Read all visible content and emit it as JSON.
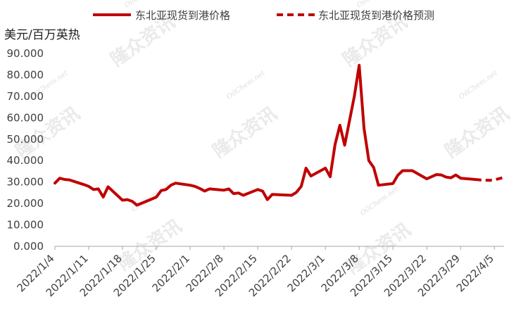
{
  "chart_data": {
    "type": "line",
    "ylabel": "美元/百万英热",
    "ylim": [
      0,
      90
    ],
    "y_ticks": [
      "0.000",
      "10.000",
      "20.000",
      "30.000",
      "40.000",
      "50.000",
      "60.000",
      "70.000",
      "80.000",
      "90.000"
    ],
    "x_ticks": [
      "2022/1/4",
      "2022/1/11",
      "2022/1/18",
      "2022/1/25",
      "2022/2/1",
      "2022/2/8",
      "2022/2/15",
      "2022/2/22",
      "2022/3/1",
      "2022/3/8",
      "2022/3/15",
      "2022/3/22",
      "2022/3/29",
      "2022/4/5"
    ],
    "x_range": [
      "2022-01-04",
      "2022-04-07"
    ],
    "series": [
      {
        "name": "东北亚现货到港价格",
        "style": "solid",
        "color": "#C00000",
        "points": [
          [
            "2022-01-04",
            29.5
          ],
          [
            "2022-01-05",
            31.8
          ],
          [
            "2022-01-06",
            31.2
          ],
          [
            "2022-01-07",
            31.0
          ],
          [
            "2022-01-10",
            28.8
          ],
          [
            "2022-01-11",
            28.0
          ],
          [
            "2022-01-12",
            26.5
          ],
          [
            "2022-01-13",
            26.8
          ],
          [
            "2022-01-14",
            23.0
          ],
          [
            "2022-01-15",
            27.8
          ],
          [
            "2022-01-18",
            21.5
          ],
          [
            "2022-01-19",
            21.8
          ],
          [
            "2022-01-20",
            21.0
          ],
          [
            "2022-01-21",
            19.2
          ],
          [
            "2022-01-24",
            22.0
          ],
          [
            "2022-01-25",
            23.0
          ],
          [
            "2022-01-26",
            26.0
          ],
          [
            "2022-01-27",
            26.5
          ],
          [
            "2022-01-28",
            28.5
          ],
          [
            "2022-01-29",
            29.5
          ],
          [
            "2022-02-01",
            28.5
          ],
          [
            "2022-02-02",
            28.0
          ],
          [
            "2022-02-03",
            27.0
          ],
          [
            "2022-02-04",
            25.8
          ],
          [
            "2022-02-05",
            26.8
          ],
          [
            "2022-02-08",
            26.2
          ],
          [
            "2022-02-09",
            26.8
          ],
          [
            "2022-02-10",
            24.6
          ],
          [
            "2022-02-11",
            24.9
          ],
          [
            "2022-02-12",
            23.8
          ],
          [
            "2022-02-15",
            26.5
          ],
          [
            "2022-02-16",
            25.8
          ],
          [
            "2022-02-17",
            21.8
          ],
          [
            "2022-02-18",
            24.2
          ],
          [
            "2022-02-22",
            23.8
          ],
          [
            "2022-02-23",
            25.2
          ],
          [
            "2022-02-24",
            28.0
          ],
          [
            "2022-02-25",
            36.5
          ],
          [
            "2022-02-26",
            32.8
          ],
          [
            "2022-03-01",
            36.5
          ],
          [
            "2022-03-02",
            32.5
          ],
          [
            "2022-03-03",
            47.5
          ],
          [
            "2022-03-04",
            56.5
          ],
          [
            "2022-03-05",
            47.2
          ],
          [
            "2022-03-07",
            70.0
          ],
          [
            "2022-03-08",
            84.5
          ],
          [
            "2022-03-09",
            55.0
          ],
          [
            "2022-03-10",
            40.0
          ],
          [
            "2022-03-11",
            36.8
          ],
          [
            "2022-03-12",
            28.5
          ],
          [
            "2022-03-15",
            29.3
          ],
          [
            "2022-03-16",
            33.2
          ],
          [
            "2022-03-17",
            35.3
          ],
          [
            "2022-03-18",
            35.3
          ],
          [
            "2022-03-19",
            35.3
          ],
          [
            "2022-03-22",
            31.5
          ],
          [
            "2022-03-23",
            32.5
          ],
          [
            "2022-03-24",
            33.5
          ],
          [
            "2022-03-25",
            33.3
          ],
          [
            "2022-03-26",
            32.3
          ],
          [
            "2022-03-27",
            32.0
          ],
          [
            "2022-03-28",
            33.3
          ],
          [
            "2022-03-29",
            31.8
          ],
          [
            "2022-03-31",
            31.4
          ],
          [
            "2022-04-01",
            31.2
          ]
        ]
      },
      {
        "name": "东北亚现货到港价格预测",
        "style": "dashed",
        "color": "#C00000",
        "points": [
          [
            "2022-04-01",
            31.2
          ],
          [
            "2022-04-02",
            31.0
          ],
          [
            "2022-04-04",
            30.8
          ],
          [
            "2022-04-05",
            31.0
          ],
          [
            "2022-04-07",
            32.2
          ]
        ]
      }
    ]
  },
  "watermark": {
    "brand": "隆众资讯",
    "site": "OilChem.net"
  }
}
